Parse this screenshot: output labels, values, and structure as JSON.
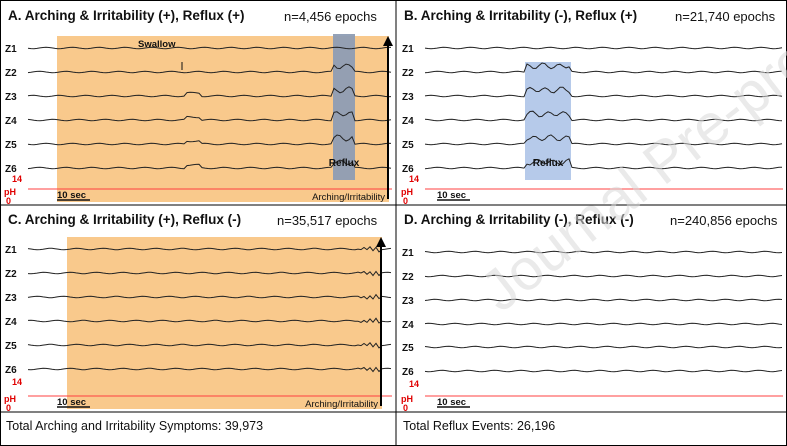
{
  "panels": [
    {
      "id": "A",
      "title": "A. Arching & Irritability (+), Reflux (+)",
      "n": "n=4,456 epochs",
      "shade": "arching",
      "reflux": true,
      "arching_label": "Arching/Irritability",
      "swallow_label": "Swallow",
      "reflux_label": "Reflux",
      "scale_label": "10 sec"
    },
    {
      "id": "B",
      "title": "B. Arching & Irritability (-), Reflux (+)",
      "n": "n=21,740 epochs",
      "shade": "none",
      "reflux": true,
      "reflux_label": "Reflux",
      "scale_label": "10 sec"
    },
    {
      "id": "C",
      "title": "C. Arching & Irritability (+), Reflux (-)",
      "n": "n=35,517 epochs",
      "shade": "arching",
      "reflux": false,
      "arching_label": "Arching/Irritability",
      "scale_label": "10 sec"
    },
    {
      "id": "D",
      "title": "D. Arching & Irritability (-), Reflux (-)",
      "n": "n=240,856 epochs",
      "shade": "none",
      "reflux": false,
      "scale_label": "10 sec"
    }
  ],
  "channels": [
    "Z1",
    "Z2",
    "Z3",
    "Z4",
    "Z5",
    "Z6"
  ],
  "ph": {
    "label": "pH",
    "max_tick": "14",
    "min_tick": "0"
  },
  "footer": {
    "left": "Total Arching and Irritability Symptoms: 39,973",
    "right": "Total Reflux Events: 26,196"
  },
  "watermark": "Journal Pre-proof",
  "colors": {
    "arching_shade": "#f9c98c",
    "reflux_shade_A": "#8e9db4",
    "reflux_shade_B": "#a9c1e6",
    "ph_trace": "#ff4040",
    "ph_label": "#e00000",
    "trace": "#222222",
    "border": "#000000"
  }
}
